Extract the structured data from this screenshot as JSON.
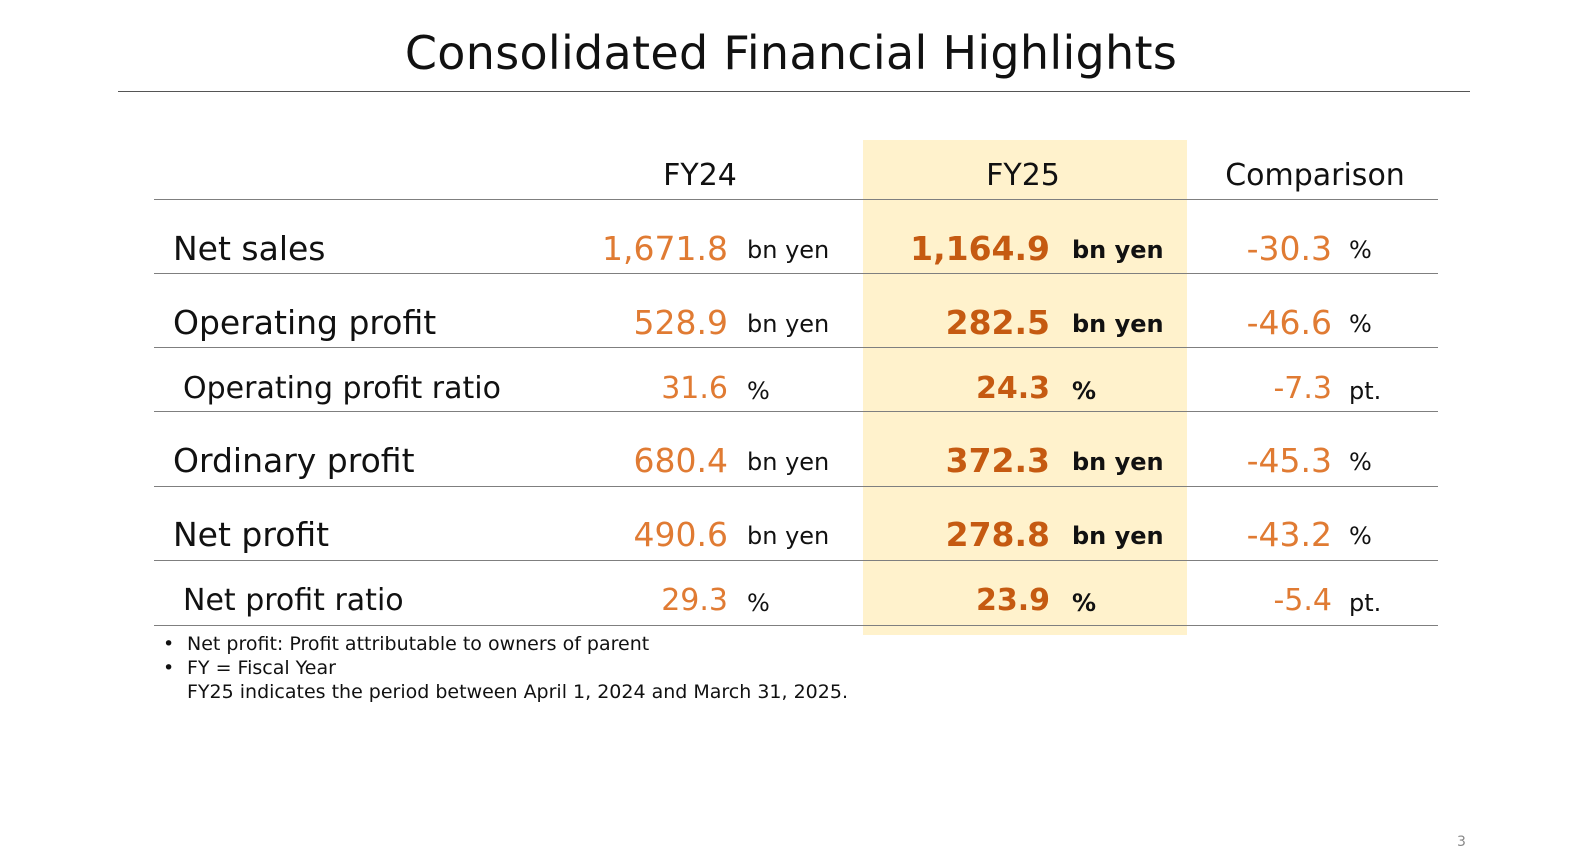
{
  "title": "Consolidated Financial Highlights",
  "columns": {
    "fy24": "FY24",
    "fy25": "FY25",
    "comparison": "Comparison"
  },
  "rows": [
    {
      "label": "Net sales",
      "fy24_value": "1,671.8",
      "fy24_unit": "bn yen",
      "fy25_value": "1,164.9",
      "fy25_unit": "bn yen",
      "cmp_value": "-30.3",
      "cmp_unit": "%"
    },
    {
      "label": "Operating profit",
      "fy24_value": "528.9",
      "fy24_unit": "bn yen",
      "fy25_value": "282.5",
      "fy25_unit": "bn yen",
      "cmp_value": "-46.6",
      "cmp_unit": "%"
    },
    {
      "label": "Operating profit ratio",
      "fy24_value": "31.6",
      "fy24_unit": "%",
      "fy25_value": "24.3",
      "fy25_unit": "%",
      "cmp_value": "-7.3",
      "cmp_unit": "pt."
    },
    {
      "label": "Ordinary profit",
      "fy24_value": "680.4",
      "fy24_unit": "bn yen",
      "fy25_value": "372.3",
      "fy25_unit": "bn yen",
      "cmp_value": "-45.3",
      "cmp_unit": "%"
    },
    {
      "label": "Net profit",
      "fy24_value": "490.6",
      "fy24_unit": "bn yen",
      "fy25_value": "278.8",
      "fy25_unit": "bn yen",
      "cmp_value": "-43.2",
      "cmp_unit": "%"
    },
    {
      "label": "Net profit ratio",
      "fy24_value": "29.3",
      "fy24_unit": "%",
      "fy25_value": "23.9",
      "fy25_unit": "%",
      "cmp_value": "-5.4",
      "cmp_unit": "pt."
    }
  ],
  "notes": {
    "bullet": "•",
    "items": [
      "Net profit: Profit attributable to owners of parent",
      "FY = Fiscal Year",
      "FY25 indicates the period between April 1, 2024 and March 31, 2025."
    ]
  },
  "page_number": "3",
  "colors": {
    "highlight": "#fff2cc",
    "value_orange": "#e07b33",
    "value_bold_orange": "#c55a11"
  }
}
